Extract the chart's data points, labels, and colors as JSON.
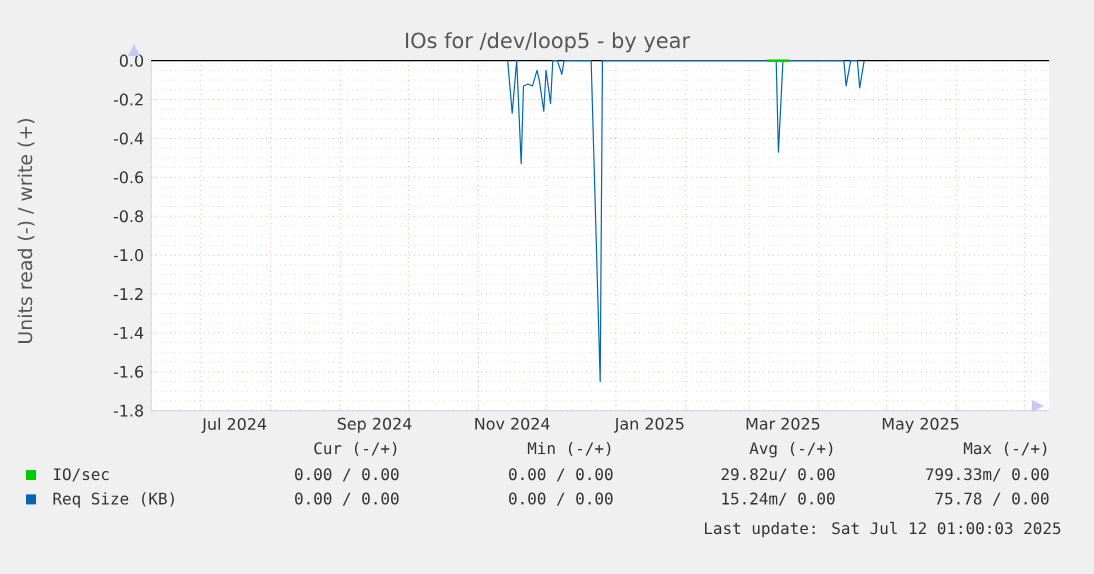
{
  "chart_data": {
    "type": "line",
    "title": "IOs for /dev/loop5 - by year",
    "ylabel": "Units read (-) / write (+)",
    "xlim": [
      "2024-06-09",
      "2025-07-12"
    ],
    "xticks": [
      {
        "value": "2024-07-01",
        "label": null
      },
      {
        "value": "2024-07-16",
        "label": "Jul 2024"
      },
      {
        "value": "2024-08-01",
        "label": null
      },
      {
        "value": "2024-09-01",
        "label": null
      },
      {
        "value": "2024-09-16",
        "label": "Sep 2024"
      },
      {
        "value": "2024-10-01",
        "label": null
      },
      {
        "value": "2024-11-01",
        "label": null
      },
      {
        "value": "2024-11-16",
        "label": "Nov 2024"
      },
      {
        "value": "2024-12-01",
        "label": null
      },
      {
        "value": "2025-01-01",
        "label": null
      },
      {
        "value": "2025-01-16",
        "label": "Jan 2025"
      },
      {
        "value": "2025-02-01",
        "label": null
      },
      {
        "value": "2025-03-01",
        "label": null
      },
      {
        "value": "2025-03-16",
        "label": "Mar 2025"
      },
      {
        "value": "2025-04-01",
        "label": null
      },
      {
        "value": "2025-05-01",
        "label": null
      },
      {
        "value": "2025-05-16",
        "label": "May 2025"
      },
      {
        "value": "2025-06-01",
        "label": null
      },
      {
        "value": "2025-07-01",
        "label": null
      }
    ],
    "ylim": [
      -1.8,
      0.0
    ],
    "yticks": [
      {
        "value": 0.0,
        "label": "0.0"
      },
      {
        "value": -0.2,
        "label": "-0.2"
      },
      {
        "value": -0.4,
        "label": "-0.4"
      },
      {
        "value": -0.6,
        "label": "-0.6"
      },
      {
        "value": -0.8,
        "label": "-0.8"
      },
      {
        "value": -1.0,
        "label": "-1.0"
      },
      {
        "value": -1.2,
        "label": "-1.2"
      },
      {
        "value": -1.4,
        "label": "-1.4"
      },
      {
        "value": -1.6,
        "label": "-1.6"
      },
      {
        "value": -1.8,
        "label": "-1.8"
      }
    ],
    "grid": true,
    "legend": "bottom",
    "marker": "none",
    "line_style": "solid",
    "ref_lines": [
      {
        "axis": "y",
        "value": 0.0,
        "color": "#000000"
      }
    ],
    "series": [
      {
        "name": "IO/sec",
        "color": "#00cc00",
        "x": [
          "2025-03-09",
          "2025-03-19"
        ],
        "values": [
          0.0,
          0.0
        ]
      },
      {
        "name": "Req Size (KB)",
        "color": "#0066b3",
        "x": [
          "2024-11-14",
          "2024-11-16",
          "2024-11-18",
          "2024-11-20",
          "2024-11-21",
          "2024-11-23",
          "2024-11-25",
          "2024-11-27",
          "2024-11-28",
          "2024-11-30",
          "2024-12-01",
          "2024-12-03",
          "2024-12-04",
          "2024-12-06",
          "2024-12-08",
          "2024-12-09",
          "2024-12-21",
          "2024-12-25",
          "2024-12-26",
          "2025-03-13",
          "2025-03-14",
          "2025-03-16",
          "2025-04-12",
          "2025-04-13",
          "2025-04-15",
          "2025-04-18",
          "2025-04-19",
          "2025-04-21"
        ],
        "values": [
          0.0,
          -0.27,
          0.0,
          -0.53,
          -0.13,
          -0.12,
          -0.13,
          -0.05,
          -0.1,
          -0.26,
          -0.05,
          -0.22,
          0.0,
          0.0,
          -0.07,
          0.0,
          0.0,
          -1.65,
          0.0,
          0.0,
          -0.47,
          0.0,
          0.0,
          -0.13,
          0.0,
          0.0,
          -0.14,
          0.0
        ]
      }
    ],
    "annotations": [
      "Cur (-/+)",
      "Min (-/+)",
      "Avg (-/+)",
      "Max (-/+)",
      "0.00 /  0.00",
      "0.00 /  0.00",
      "29.82u/  0.00",
      "799.33m/  0.00",
      "0.00 /  0.00",
      "0.00 /  0.00",
      "15.24m/  0.00",
      "75.78 /  0.00",
      "Last update: Sat Jul 12 01:00:03 2025"
    ]
  }
}
